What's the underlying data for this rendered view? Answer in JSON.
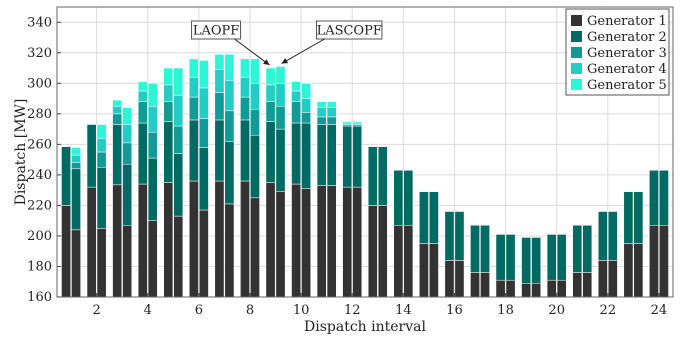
{
  "chart_data": {
    "type": "bar",
    "xlabel": "Dispatch interval",
    "ylabel": "Dispatch [MW]",
    "ylim": [
      160,
      350
    ],
    "yticks": [
      160,
      180,
      200,
      220,
      240,
      260,
      280,
      300,
      320,
      340
    ],
    "xticks": [
      2,
      4,
      6,
      8,
      10,
      12,
      14,
      16,
      18,
      20,
      22,
      24
    ],
    "grid": true,
    "legend_position": "top-right",
    "intervals": [
      1,
      2,
      3,
      4,
      5,
      6,
      7,
      8,
      9,
      10,
      11,
      12,
      13,
      14,
      15,
      16,
      17,
      18,
      19,
      20,
      21,
      22,
      23,
      24
    ],
    "series": [
      {
        "name": "Generator 1",
        "color": "#333333"
      },
      {
        "name": "Generator 2",
        "color": "#006a63"
      },
      {
        "name": "Generator 3",
        "color": "#129b96"
      },
      {
        "name": "Generator 4",
        "color": "#23cdc5"
      },
      {
        "name": "Generator 5",
        "color": "#2ff5d8"
      }
    ],
    "groups": [
      {
        "name": "LAOPF",
        "bars": [
          [
            220,
            38.5,
            0,
            0,
            0
          ],
          [
            232,
            41,
            0,
            0,
            0
          ],
          [
            233.5,
            39.5,
            7,
            5,
            4
          ],
          [
            234,
            40,
            14,
            7,
            6
          ],
          [
            235,
            40,
            13,
            11,
            11
          ],
          [
            236,
            40,
            15,
            13,
            12
          ],
          [
            236,
            40,
            18,
            15,
            10
          ],
          [
            236,
            40,
            15,
            13,
            12
          ],
          [
            235,
            40,
            13,
            11,
            11
          ],
          [
            234,
            40,
            14,
            7,
            6
          ],
          [
            233,
            40,
            5,
            6,
            4
          ],
          [
            232,
            40,
            1,
            1,
            1
          ],
          [
            220,
            38.5,
            0,
            0,
            0
          ],
          [
            207,
            36,
            0,
            0,
            0
          ],
          [
            195,
            34,
            0,
            0,
            0
          ],
          [
            184,
            32,
            0,
            0,
            0
          ],
          [
            176,
            31,
            0,
            0,
            0
          ],
          [
            171,
            30,
            0,
            0,
            0
          ],
          [
            169,
            30,
            0,
            0,
            0
          ],
          [
            171,
            30,
            0,
            0,
            0
          ],
          [
            176,
            31,
            0,
            0,
            0
          ],
          [
            184,
            32,
            0,
            0,
            0
          ],
          [
            195,
            34,
            0,
            0,
            0
          ],
          [
            207,
            36,
            0,
            0,
            0
          ]
        ]
      },
      {
        "name": "LASCOPF",
        "bars": [
          [
            204,
            40,
            4,
            5,
            5
          ],
          [
            205,
            40,
            10,
            9,
            9
          ],
          [
            207,
            40,
            14,
            12,
            11
          ],
          [
            210,
            41,
            17,
            17,
            15
          ],
          [
            213,
            41,
            18,
            20,
            18
          ],
          [
            217,
            41,
            19,
            20,
            18
          ],
          [
            221,
            41,
            20,
            20,
            17
          ],
          [
            225,
            41,
            17,
            17,
            16
          ],
          [
            229,
            41,
            15,
            15,
            11
          ],
          [
            231,
            43,
            7,
            9,
            10
          ],
          [
            233,
            40,
            5,
            6,
            4
          ],
          [
            232,
            40,
            1,
            1,
            1
          ],
          [
            220,
            38.5,
            0,
            0,
            0
          ],
          [
            207,
            36,
            0,
            0,
            0
          ],
          [
            195,
            34,
            0,
            0,
            0
          ],
          [
            184,
            32,
            0,
            0,
            0
          ],
          [
            176,
            31,
            0,
            0,
            0
          ],
          [
            171,
            30,
            0,
            0,
            0
          ],
          [
            169,
            30,
            0,
            0,
            0
          ],
          [
            171,
            30,
            0,
            0,
            0
          ],
          [
            176,
            31,
            0,
            0,
            0
          ],
          [
            184,
            32,
            0,
            0,
            0
          ],
          [
            195,
            34,
            0,
            0,
            0
          ],
          [
            207,
            36,
            0,
            0,
            0
          ]
        ]
      }
    ],
    "annotations": [
      {
        "text": "LAOPF",
        "interval": 9,
        "group": 0
      },
      {
        "text": "LASCOPF",
        "interval": 9,
        "group": 1
      }
    ]
  }
}
